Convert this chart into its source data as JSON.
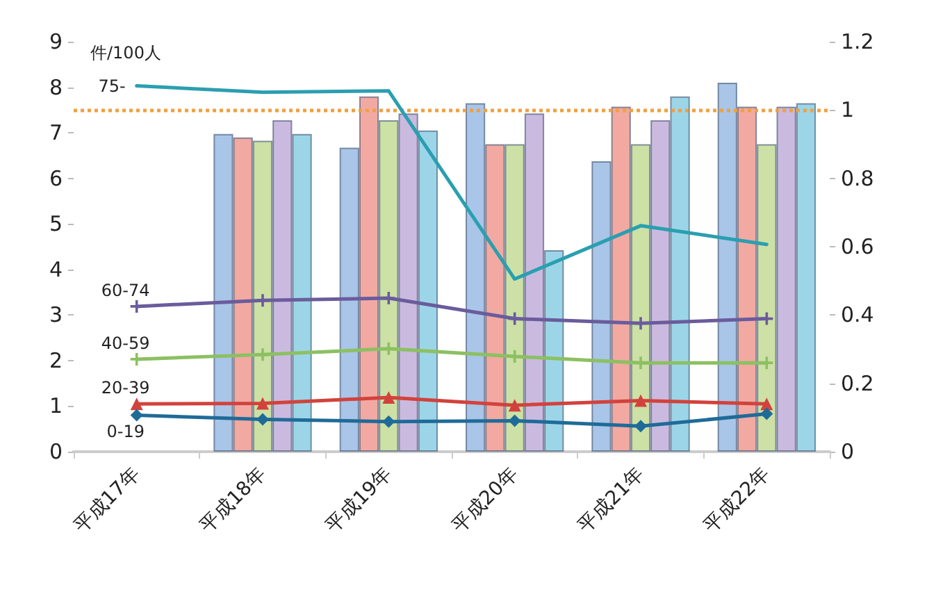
{
  "chart_data": {
    "type": "bar",
    "ylabel": "件/100人",
    "categories": [
      "平成17年",
      "平成18年",
      "平成19年",
      "平成20年",
      "平成21年",
      "平成22年"
    ],
    "series": [
      {
        "axis": "y2",
        "color": "#a9c5e8",
        "values": [
          null,
          0.93,
          0.89,
          1.02,
          0.85,
          1.08
        ]
      },
      {
        "axis": "y2",
        "color": "#f2a9a2",
        "values": [
          null,
          0.92,
          1.04,
          0.9,
          1.01,
          1.01
        ]
      },
      {
        "axis": "y2",
        "color": "#cde0a6",
        "values": [
          null,
          0.91,
          0.97,
          0.9,
          0.9,
          0.9
        ]
      },
      {
        "axis": "y2",
        "color": "#cbbadf",
        "values": [
          null,
          0.97,
          0.99,
          0.99,
          0.97,
          1.01
        ]
      },
      {
        "axis": "y2",
        "color": "#9dd5e8",
        "values": [
          null,
          0.93,
          0.94,
          0.59,
          1.04,
          1.02
        ]
      },
      {
        "type": "line",
        "name": "75-",
        "color": "#2a9fb0",
        "marker": "none",
        "values": [
          8.03,
          7.89,
          7.92,
          3.79,
          4.96,
          4.55
        ]
      },
      {
        "type": "line",
        "name": "60-74",
        "color": "#6a5c9c",
        "marker": "cross",
        "values": [
          3.19,
          3.32,
          3.37,
          2.92,
          2.82,
          2.92
        ]
      },
      {
        "type": "line",
        "name": "40-59",
        "color": "#8cc062",
        "marker": "cross",
        "values": [
          2.03,
          2.13,
          2.26,
          2.09,
          1.95,
          1.95
        ]
      },
      {
        "type": "line",
        "name": "20-39",
        "color": "#d2423c",
        "marker": "triangle",
        "values": [
          1.05,
          1.06,
          1.19,
          1.02,
          1.12,
          1.05
        ]
      },
      {
        "type": "line",
        "name": "0-19",
        "color": "#1f6b98",
        "marker": "diamond",
        "values": [
          0.8,
          0.71,
          0.66,
          0.68,
          0.56,
          0.83
        ]
      }
    ],
    "ylim": [
      0,
      9
    ],
    "yticks": [
      0,
      1,
      2,
      3,
      4,
      5,
      6,
      7,
      8,
      9
    ],
    "y2lim": [
      0,
      1.2
    ],
    "y2ticks": [
      0,
      0.2,
      0.4,
      0.6,
      0.8,
      1,
      1.2
    ],
    "ref_lines": [
      {
        "axis": "y2",
        "value": 1,
        "color": "#f0a040",
        "line_style": "dotted"
      }
    ],
    "grid": false,
    "legend": false
  }
}
